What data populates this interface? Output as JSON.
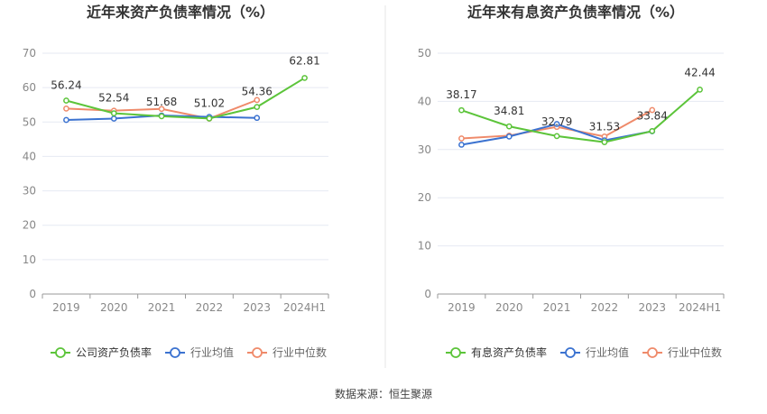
{
  "footer": {
    "source": "数据来源：恒生聚源"
  },
  "colors": {
    "company": "#5cc43a",
    "avg": "#3b72d0",
    "median": "#ef8a6a",
    "axis": "#888888",
    "grid": "#e6e9f2",
    "label": "#333333",
    "divider": "#e5e5e5"
  },
  "chart_data": [
    {
      "type": "line",
      "title": "近年来资产负债率情况（%）",
      "categories": [
        "2019",
        "2020",
        "2021",
        "2022",
        "2023",
        "2024H1"
      ],
      "ylim": [
        0,
        70
      ],
      "yticks": [
        0,
        10,
        20,
        30,
        40,
        50,
        60,
        70
      ],
      "grid": true,
      "legend_position": "bottom",
      "label_series": 0,
      "series": [
        {
          "name": "公司资产负债率",
          "color_key": "company",
          "values": [
            56.24,
            52.54,
            51.68,
            51.02,
            54.36,
            62.81
          ],
          "labels": [
            "56.24",
            "52.54",
            "51.68",
            "51.02",
            "54.36",
            "62.81"
          ]
        },
        {
          "name": "行业均值",
          "color_key": "avg",
          "values": [
            50.6,
            51.0,
            51.9,
            51.5,
            51.2,
            null
          ]
        },
        {
          "name": "行业中位数",
          "color_key": "median",
          "values": [
            53.9,
            53.3,
            53.8,
            51.0,
            56.4,
            null
          ]
        }
      ]
    },
    {
      "type": "line",
      "title": "近年来有息资产负债率情况（%）",
      "categories": [
        "2019",
        "2020",
        "2021",
        "2022",
        "2023",
        "2024H1"
      ],
      "ylim": [
        0,
        50
      ],
      "yticks": [
        0,
        10,
        20,
        30,
        40,
        50
      ],
      "grid": true,
      "legend_position": "bottom",
      "label_series": 0,
      "series": [
        {
          "name": "有息资产负债率",
          "color_key": "company",
          "values": [
            38.17,
            34.81,
            32.79,
            31.53,
            33.84,
            42.44
          ],
          "labels": [
            "38.17",
            "34.81",
            "32.79",
            "31.53",
            "33.84",
            "42.44"
          ]
        },
        {
          "name": "行业均值",
          "color_key": "avg",
          "values": [
            31.0,
            32.7,
            35.3,
            31.9,
            33.8,
            null
          ]
        },
        {
          "name": "行业中位数",
          "color_key": "median",
          "values": [
            32.3,
            32.9,
            34.7,
            32.7,
            38.2,
            null
          ]
        }
      ]
    }
  ]
}
